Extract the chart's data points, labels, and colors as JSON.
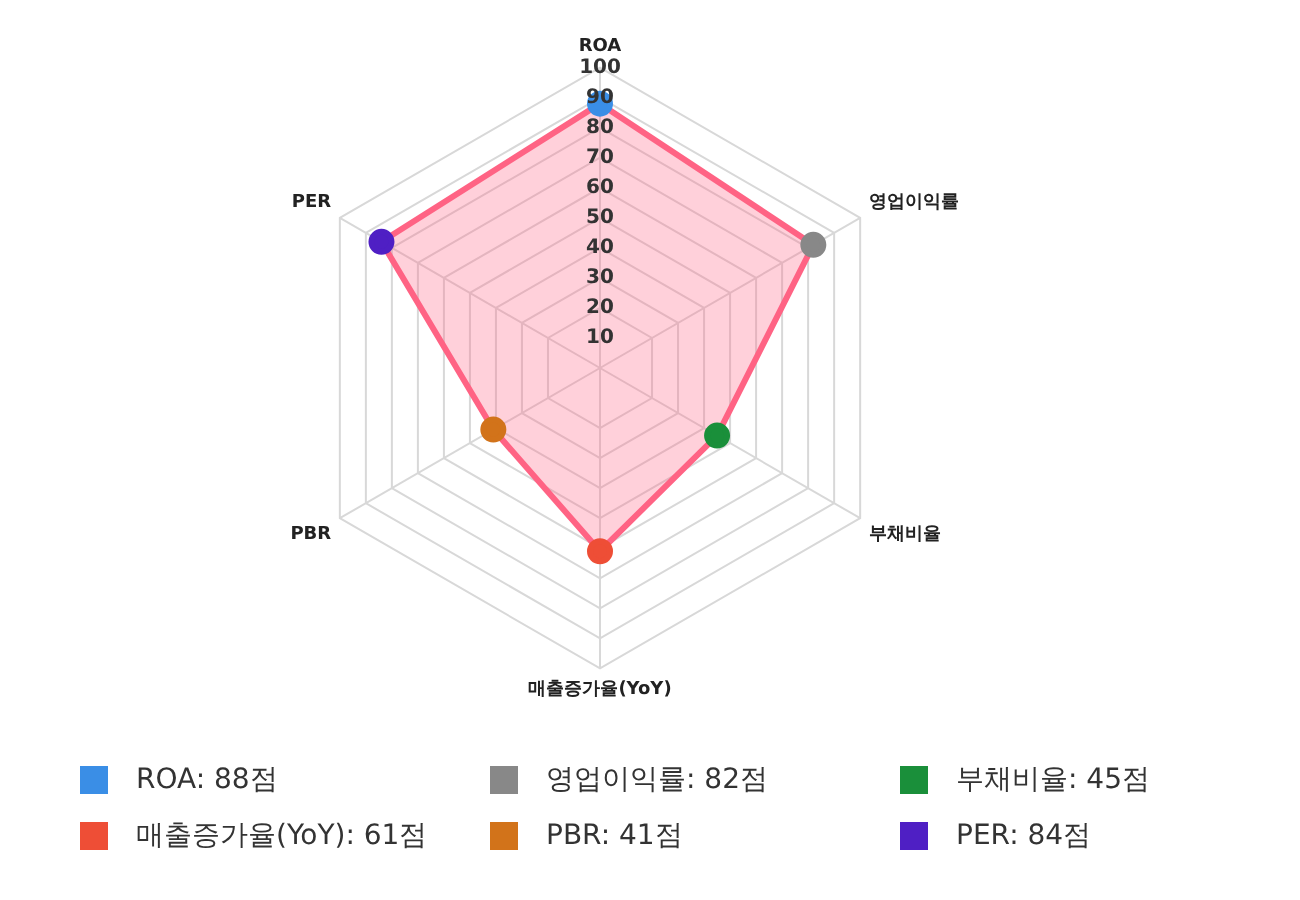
{
  "chart_data": {
    "type": "radar",
    "categories": [
      "ROA",
      "영업이익률",
      "부채비율",
      "매출증가율(YoY)",
      "PBR",
      "PER"
    ],
    "series": [
      {
        "color": "#ff6384",
        "values": [
          88,
          82,
          45,
          61,
          41,
          84
        ],
        "colors": [
          "#3a8ee6",
          "#888888",
          "#1a8f3a",
          "#ee4e36",
          "#d2731a",
          "#4f1fc4"
        ]
      }
    ],
    "annotations": [
      "ROA: 88점",
      "영업이익률: 82점",
      "부채비율: 45점",
      "매출증가율(YoY): 61점",
      "PBR: 41점",
      "PER: 84점"
    ],
    "ylim": [
      0,
      100
    ],
    "yticks": [
      10,
      20,
      30,
      40,
      50,
      60,
      70,
      80,
      90,
      100
    ],
    "grid": true,
    "marker": "circle"
  }
}
